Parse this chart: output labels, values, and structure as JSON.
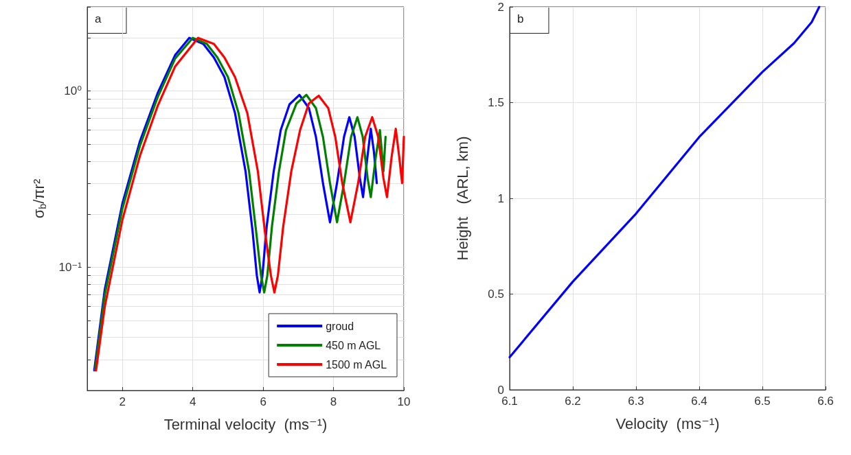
{
  "chart_data": [
    {
      "type": "line",
      "annotations": [
        "a"
      ],
      "xlabel": "Terminal velocity  (ms⁻¹)",
      "ylabel": "σ$_{b}$/πr²",
      "log": "y",
      "grid": true,
      "legend": "bottom right",
      "xlim": [
        1,
        10
      ],
      "xticks": [
        2,
        4,
        6,
        8,
        10
      ],
      "ylim": [
        0.02,
        3
      ],
      "yticks": [
        {
          "value": 0.02,
          "label": null
        },
        {
          "value": 0.03,
          "label": null
        },
        {
          "value": 0.04,
          "label": null
        },
        {
          "value": 0.05,
          "label": null
        },
        {
          "value": 0.06,
          "label": null
        },
        {
          "value": 0.07,
          "label": null
        },
        {
          "value": 0.08,
          "label": null
        },
        {
          "value": 0.09,
          "label": null
        },
        {
          "value": 0.1,
          "label": "10⁻¹"
        },
        {
          "value": 0.2,
          "label": null
        },
        {
          "value": 0.3,
          "label": null
        },
        {
          "value": 0.4,
          "label": null
        },
        {
          "value": 0.5,
          "label": null
        },
        {
          "value": 0.6,
          "label": null
        },
        {
          "value": 0.7,
          "label": null
        },
        {
          "value": 0.8,
          "label": null
        },
        {
          "value": 0.9,
          "label": null
        },
        {
          "value": 1,
          "label": "10⁰"
        },
        {
          "value": 2,
          "label": null
        },
        {
          "value": 3,
          "label": null
        }
      ],
      "series": [
        {
          "name": "groud",
          "color": "#0000ff",
          "x": [
            1.2,
            1.5,
            2,
            2.5,
            3,
            3.5,
            3.9,
            4.3,
            4.6,
            4.9,
            5.2,
            5.5,
            5.7,
            5.82,
            5.9,
            5.98,
            6.1,
            6.3,
            6.5,
            6.75,
            7.03,
            7.3,
            7.5,
            7.7,
            7.9,
            8.1,
            8.3,
            8.45,
            8.6,
            8.75,
            8.84,
            8.95,
            9.06,
            9.15,
            9.23
          ],
          "values": [
            0.026,
            0.075,
            0.23,
            0.52,
            0.97,
            1.6,
            2.0,
            1.85,
            1.55,
            1.2,
            0.75,
            0.35,
            0.16,
            0.09,
            0.072,
            0.09,
            0.17,
            0.35,
            0.6,
            0.84,
            0.95,
            0.8,
            0.55,
            0.3,
            0.18,
            0.3,
            0.55,
            0.71,
            0.55,
            0.32,
            0.25,
            0.4,
            0.61,
            0.45,
            0.3
          ]
        },
        {
          "name": "450 m AGL",
          "color": "#008000",
          "x": [
            1.22,
            1.5,
            2,
            2.5,
            3,
            3.5,
            4.0,
            4.4,
            4.7,
            5.0,
            5.3,
            5.6,
            5.8,
            5.94,
            6.03,
            6.12,
            6.25,
            6.45,
            6.65,
            6.95,
            7.23,
            7.5,
            7.7,
            7.9,
            8.1,
            8.3,
            8.5,
            8.68,
            8.83,
            8.97,
            9.06,
            9.2,
            9.32,
            9.42,
            9.48
          ],
          "values": [
            0.026,
            0.07,
            0.215,
            0.49,
            0.92,
            1.53,
            2.0,
            1.85,
            1.55,
            1.2,
            0.75,
            0.35,
            0.16,
            0.09,
            0.072,
            0.09,
            0.17,
            0.35,
            0.6,
            0.85,
            0.95,
            0.8,
            0.55,
            0.3,
            0.18,
            0.3,
            0.55,
            0.71,
            0.55,
            0.32,
            0.25,
            0.42,
            0.6,
            0.35,
            0.55
          ]
        },
        {
          "name": "1500 m AGL",
          "color": "#ff0000",
          "x": [
            1.25,
            1.5,
            2,
            2.5,
            3,
            3.5,
            4.15,
            4.6,
            4.9,
            5.2,
            5.55,
            5.85,
            6.05,
            6.22,
            6.32,
            6.42,
            6.57,
            6.8,
            7.05,
            7.3,
            7.58,
            7.85,
            8.05,
            8.25,
            8.48,
            8.7,
            8.9,
            9.1,
            9.27,
            9.42,
            9.52,
            9.65,
            9.77,
            9.87,
            9.95,
            10
          ],
          "values": [
            0.026,
            0.06,
            0.186,
            0.43,
            0.82,
            1.38,
            2.0,
            1.85,
            1.55,
            1.2,
            0.75,
            0.35,
            0.16,
            0.09,
            0.072,
            0.09,
            0.17,
            0.35,
            0.6,
            0.85,
            0.94,
            0.8,
            0.55,
            0.3,
            0.18,
            0.3,
            0.55,
            0.71,
            0.55,
            0.32,
            0.25,
            0.42,
            0.61,
            0.42,
            0.3,
            0.55
          ]
        }
      ]
    },
    {
      "type": "line",
      "annotations": [
        "b"
      ],
      "xlabel": "Velocity  (ms⁻¹)",
      "ylabel": "Height   (ARL, km)",
      "grid": true,
      "xlim": [
        6.1,
        6.6
      ],
      "xticks": [
        6.1,
        6.2,
        6.3,
        6.4,
        6.5,
        6.6
      ],
      "ylim": [
        0,
        2
      ],
      "yticks": [
        0,
        0.5,
        1,
        1.5,
        2
      ],
      "series": [
        {
          "color": "#0000ff",
          "x": [
            6.1,
            6.2,
            6.3,
            6.4,
            6.5,
            6.55,
            6.578,
            6.59
          ],
          "values": [
            0.17,
            0.565,
            0.92,
            1.32,
            1.66,
            1.81,
            1.92,
            2.0
          ]
        }
      ]
    }
  ]
}
